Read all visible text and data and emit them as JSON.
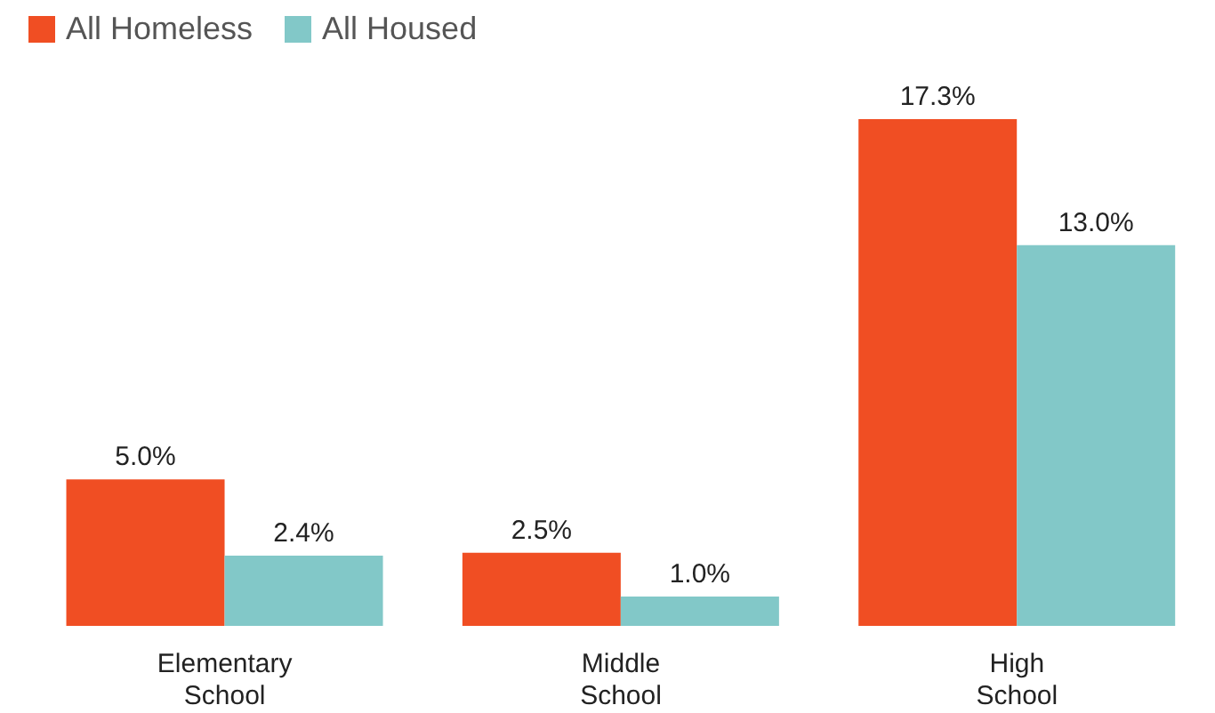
{
  "chart_data": {
    "type": "bar",
    "categories": [
      "Elementary School",
      "Middle School",
      "High School"
    ],
    "series": [
      {
        "name": "All Homeless",
        "color": "#f04e23",
        "values": [
          5.0,
          2.5,
          17.3
        ],
        "value_labels": [
          "5.0%",
          "2.5%",
          "17.3%"
        ]
      },
      {
        "name": "All Housed",
        "color": "#82c8c8",
        "values": [
          2.4,
          1.0,
          13.0
        ],
        "value_labels": [
          "2.4%",
          "1.0%",
          "13.0%"
        ]
      }
    ],
    "legend": "top left",
    "grid": false
  }
}
